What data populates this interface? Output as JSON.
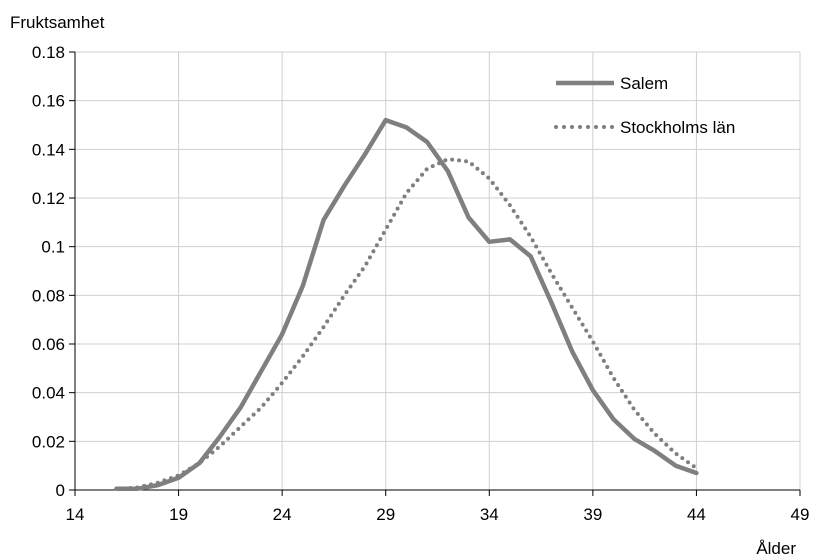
{
  "chart_data": {
    "type": "line",
    "ylabel": "Fruktsamhet",
    "xlabel": "Ålder",
    "xlim": [
      14,
      49
    ],
    "ylim": [
      0,
      0.18
    ],
    "x_ticks": [
      14,
      19,
      24,
      29,
      34,
      39,
      44,
      49
    ],
    "x_tick_labels": [
      "14",
      "19",
      "24",
      "29",
      "34",
      "39",
      "44",
      "49"
    ],
    "y_ticks": [
      0,
      0.02,
      0.04,
      0.06,
      0.08,
      0.1,
      0.12,
      0.14,
      0.16,
      0.18
    ],
    "y_tick_labels": [
      "0",
      "0.02",
      "0.04",
      "0.06",
      "0.08",
      "0.1",
      "0.12",
      "0.14",
      "0.16",
      "0.18"
    ],
    "grid": true,
    "legend_position": "top-right",
    "series": [
      {
        "name": "Salem",
        "style": "solid",
        "color": "#7f7f7f",
        "x": [
          16,
          17,
          18,
          19,
          20,
          21,
          22,
          23,
          24,
          25,
          26,
          27,
          28,
          29,
          30,
          31,
          32,
          33,
          34,
          35,
          36,
          37,
          38,
          39,
          40,
          41,
          42,
          43,
          44
        ],
        "y": [
          0.0005,
          0.0005,
          0.002,
          0.005,
          0.011,
          0.022,
          0.034,
          0.049,
          0.064,
          0.084,
          0.111,
          0.125,
          0.138,
          0.152,
          0.149,
          0.143,
          0.131,
          0.112,
          0.102,
          0.103,
          0.096,
          0.077,
          0.057,
          0.041,
          0.029,
          0.021,
          0.016,
          0.01,
          0.007
        ]
      },
      {
        "name": "Stockholms län",
        "style": "dotted",
        "color": "#7f7f7f",
        "x": [
          16,
          17,
          18,
          19,
          20,
          21,
          22,
          23,
          24,
          25,
          26,
          27,
          28,
          29,
          30,
          31,
          32,
          33,
          34,
          35,
          36,
          37,
          38,
          39,
          40,
          41,
          42,
          43,
          44
        ],
        "y": [
          0.0005,
          0.001,
          0.003,
          0.006,
          0.011,
          0.018,
          0.026,
          0.034,
          0.044,
          0.055,
          0.067,
          0.08,
          0.092,
          0.107,
          0.122,
          0.132,
          0.136,
          0.135,
          0.128,
          0.117,
          0.104,
          0.089,
          0.075,
          0.061,
          0.046,
          0.033,
          0.023,
          0.015,
          0.009
        ]
      }
    ]
  }
}
